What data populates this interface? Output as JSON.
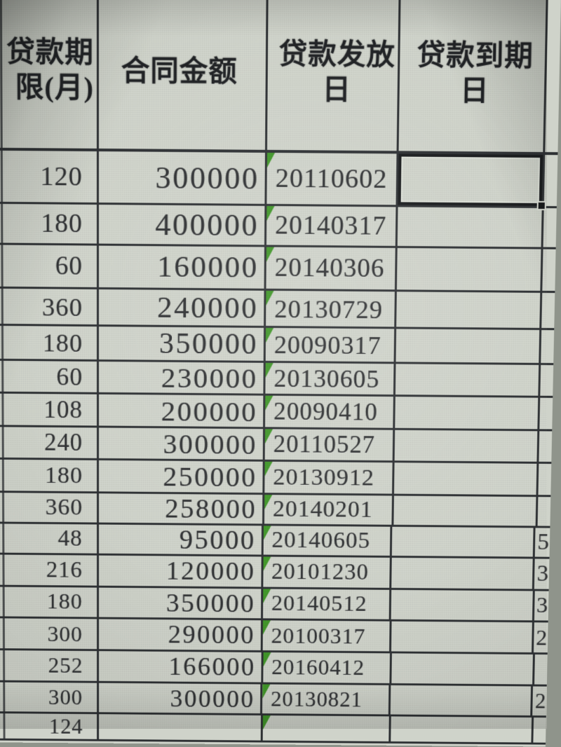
{
  "table": {
    "headers": [
      {
        "id": "loan-term-months",
        "line1": "贷款期",
        "line2": "限(月)"
      },
      {
        "id": "contract-amount",
        "line1": "合同金额",
        "line2": ""
      },
      {
        "id": "loan-issue-date",
        "line1": "贷款发放",
        "line2": "日"
      },
      {
        "id": "loan-maturity-date",
        "line1": "贷款到期",
        "line2": "日"
      }
    ],
    "rows": [
      {
        "term": "120",
        "amount": "300000",
        "issue": "20110602",
        "maturity": "",
        "extra": ""
      },
      {
        "term": "180",
        "amount": "400000",
        "issue": "20140317",
        "maturity": "",
        "extra": ""
      },
      {
        "term": "60",
        "amount": "160000",
        "issue": "20140306",
        "maturity": "",
        "extra": ""
      },
      {
        "term": "360",
        "amount": "240000",
        "issue": "20130729",
        "maturity": "",
        "extra": ""
      },
      {
        "term": "180",
        "amount": "350000",
        "issue": "20090317",
        "maturity": "",
        "extra": ""
      },
      {
        "term": "60",
        "amount": "230000",
        "issue": "20130605",
        "maturity": "",
        "extra": ""
      },
      {
        "term": "108",
        "amount": "200000",
        "issue": "20090410",
        "maturity": "",
        "extra": ""
      },
      {
        "term": "240",
        "amount": "300000",
        "issue": "20110527",
        "maturity": "",
        "extra": ""
      },
      {
        "term": "180",
        "amount": "250000",
        "issue": "20130912",
        "maturity": "",
        "extra": ""
      },
      {
        "term": "360",
        "amount": "258000",
        "issue": "20140201",
        "maturity": "",
        "extra": ""
      },
      {
        "term": "48",
        "amount": "95000",
        "issue": "20140605",
        "maturity": "",
        "extra": "5"
      },
      {
        "term": "216",
        "amount": "120000",
        "issue": "20101230",
        "maturity": "",
        "extra": "3"
      },
      {
        "term": "180",
        "amount": "350000",
        "issue": "20140512",
        "maturity": "",
        "extra": "3"
      },
      {
        "term": "300",
        "amount": "290000",
        "issue": "20100317",
        "maturity": "",
        "extra": "2"
      },
      {
        "term": "252",
        "amount": "166000",
        "issue": "20160412",
        "maturity": "",
        "extra": ""
      },
      {
        "term": "300",
        "amount": "300000",
        "issue": "20130821",
        "maturity": "",
        "extra": "2"
      },
      {
        "term": "124",
        "amount": "",
        "issue": "",
        "maturity": "",
        "extra": "",
        "partial": true
      }
    ],
    "selection": {
      "row_index": 0,
      "column": "maturity"
    }
  },
  "icons": {
    "indicator": "stored-as-text-triangle",
    "fill_handle": "selection-fill-handle"
  },
  "colors": {
    "cell_background": "#cfd3ca",
    "grid_line": "#2c2f32",
    "text": "#2e3032",
    "indicator_green": "#3f9627",
    "selection_border": "#17191b"
  }
}
